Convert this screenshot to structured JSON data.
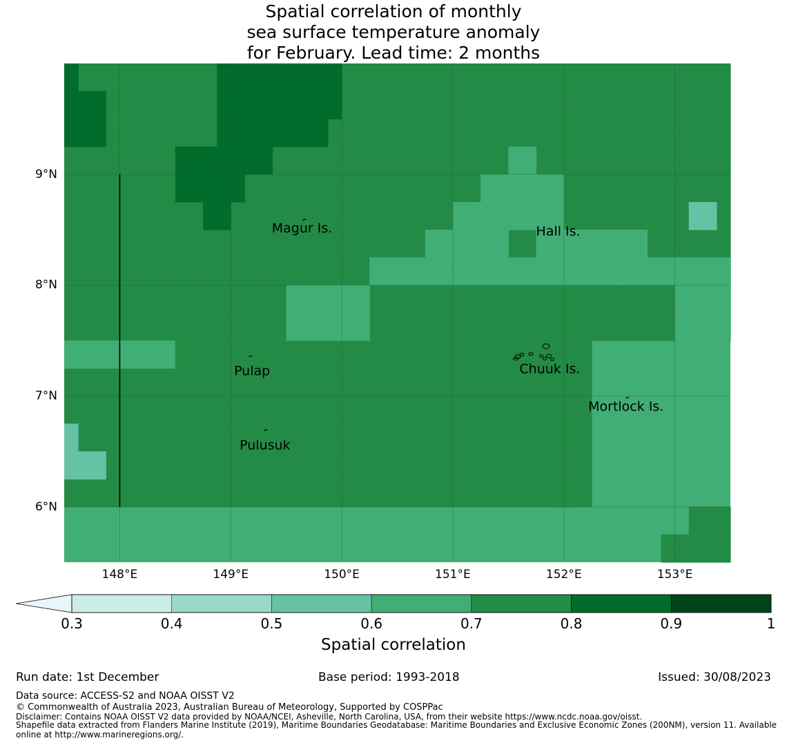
{
  "title": {
    "line1": "Spatial correlation of monthly",
    "line2": "sea surface temperature anomaly",
    "line3": " for February. Lead time: 2 months"
  },
  "map": {
    "lon_range": [
      147.5,
      153.5
    ],
    "lat_range": [
      5.5,
      10.0
    ],
    "grid_cell_deg": 0.25,
    "lat_labels": [
      {
        "lat": 9,
        "text": "9°N"
      },
      {
        "lat": 8,
        "text": "8°N"
      },
      {
        "lat": 7,
        "text": "7°N"
      },
      {
        "lat": 6,
        "text": "6°N"
      }
    ],
    "lon_labels": [
      {
        "lon": 148,
        "text": "148°E"
      },
      {
        "lon": 149,
        "text": "149°E"
      },
      {
        "lon": 150,
        "text": "150°E"
      },
      {
        "lon": 151,
        "text": "151°E"
      },
      {
        "lon": 152,
        "text": "152°E"
      },
      {
        "lon": 153,
        "text": "153°E"
      }
    ],
    "base_value": 0.65,
    "patches": [
      {
        "value": 0.75,
        "cells": [
          [
            147.5,
            152.25,
            6.0,
            7.5
          ],
          [
            147.5,
            153.5,
            7.5,
            10.0
          ]
        ]
      },
      {
        "value": 0.65,
        "cells": [
          [
            148.5,
            149.5,
            7.25,
            7.5
          ],
          [
            149.5,
            150.25,
            7.5,
            8.0
          ],
          [
            150.25,
            153.5,
            8.0,
            8.25
          ],
          [
            150.25,
            150.75,
            8.0,
            8.25
          ],
          [
            150.75,
            151.5,
            8.0,
            8.5
          ],
          [
            151.0,
            151.75,
            8.5,
            8.75
          ],
          [
            151.25,
            151.75,
            8.75,
            9.0
          ],
          [
            151.5,
            151.75,
            9.0,
            9.25
          ],
          [
            151.75,
            152.0,
            8.25,
            9.0
          ],
          [
            152.0,
            152.75,
            8.25,
            8.5
          ],
          [
            152.0,
            152.5,
            8.0,
            8.25
          ],
          [
            152.75,
            153.5,
            8.0,
            8.25
          ],
          [
            148.0,
            148.5,
            7.25,
            7.5
          ],
          [
            152.25,
            152.75,
            8.0,
            8.25
          ],
          [
            152.75,
            153.0,
            8.0,
            8.25
          ],
          [
            152.0,
            152.25,
            8.0,
            8.25
          ],
          [
            153.0,
            153.5,
            7.5,
            8.0
          ],
          [
            147.5,
            148.0,
            7.25,
            7.5
          ]
        ]
      },
      {
        "value": 0.75,
        "cells": [
          [
            148.5,
            149.5,
            7.25,
            7.5
          ]
        ]
      },
      {
        "value": 0.85,
        "cells": [
          [
            147.5,
            147.625,
            9.75,
            10.0
          ],
          [
            147.5,
            147.875,
            9.25,
            9.75
          ],
          [
            148.75,
            149.0,
            8.5,
            9.0
          ],
          [
            148.875,
            150.0,
            9.5,
            10.0
          ],
          [
            148.5,
            149.125,
            8.75,
            9.25
          ],
          [
            148.875,
            149.375,
            9.0,
            9.5
          ],
          [
            149.375,
            150.0,
            9.5,
            10.0
          ],
          [
            149.375,
            149.875,
            9.25,
            9.5
          ]
        ]
      },
      {
        "value": 0.55,
        "cells": [
          [
            147.5,
            147.625,
            6.5,
            6.75
          ],
          [
            147.5,
            147.875,
            6.25,
            6.5
          ],
          [
            153.125,
            153.375,
            8.5,
            8.75
          ]
        ]
      },
      {
        "value": 0.75,
        "cells": [
          [
            151.875,
            152.125,
            6.0,
            6.25
          ],
          [
            152.875,
            153.5,
            5.5,
            5.75
          ],
          [
            153.125,
            153.5,
            5.75,
            6.0
          ]
        ]
      }
    ],
    "region_rect": [
      147.5,
      153.5,
      5.5,
      10.0
    ],
    "boundary_line_lon": 148,
    "boundary_line_lat": [
      6.0,
      9.0
    ],
    "places": [
      {
        "name": "Magur Is.",
        "lon": 149.37,
        "lat": 8.52
      },
      {
        "name": "Hall Is.",
        "lon": 151.75,
        "lat": 8.49
      },
      {
        "name": "Pulap",
        "lon": 149.03,
        "lat": 7.23
      },
      {
        "name": "Chuuk Is.",
        "lon": 151.6,
        "lat": 7.25
      },
      {
        "name": "Mortlock Is.",
        "lon": 152.22,
        "lat": 6.91
      },
      {
        "name": "Pulusuk",
        "lon": 149.08,
        "lat": 6.56
      }
    ]
  },
  "colorbar": {
    "label": "Spatial correlation",
    "extend_color": "#e8f6fa",
    "bins": [
      {
        "from": 0.3,
        "to": 0.4,
        "color": "#ccece6"
      },
      {
        "from": 0.4,
        "to": 0.5,
        "color": "#99d8c9"
      },
      {
        "from": 0.5,
        "to": 0.6,
        "color": "#66c2a4"
      },
      {
        "from": 0.6,
        "to": 0.7,
        "color": "#41ae76"
      },
      {
        "from": 0.7,
        "to": 0.8,
        "color": "#238b45"
      },
      {
        "from": 0.8,
        "to": 0.9,
        "color": "#006d2c"
      },
      {
        "from": 0.9,
        "to": 1.0,
        "color": "#00441b"
      }
    ],
    "ticks": [
      "0.3",
      "0.4",
      "0.5",
      "0.6",
      "0.7",
      "0.8",
      "0.9",
      "1"
    ]
  },
  "footer": {
    "run_date": "Run date: 1st December",
    "base_period": "Base period: 1993-2018",
    "issued": "Issued: 30/08/2023",
    "data_source": "Data source: ACCESS-S2 and NOAA OISST V2",
    "copyright": "© Commonwealth of Australia 2023, Australian Bureau of Meteorology, Supported by COSPPac",
    "disclaimer": "Disclaimer: Contains NOAA OISST V2 data provided by NOAA/NCEI, Asheville, North Carolina, USA, from their website https://www.ncdc.noaa.gov/oisst.",
    "shapefile1": "Shapefile data extracted from Flanders Marine Institute (2019), Maritime Boundaries Geodatabase: Maritime Boundaries and Exclusive Economic Zones (200NM), version 11. Available",
    "shapefile2": "online at http://www.marineregions.org/."
  }
}
